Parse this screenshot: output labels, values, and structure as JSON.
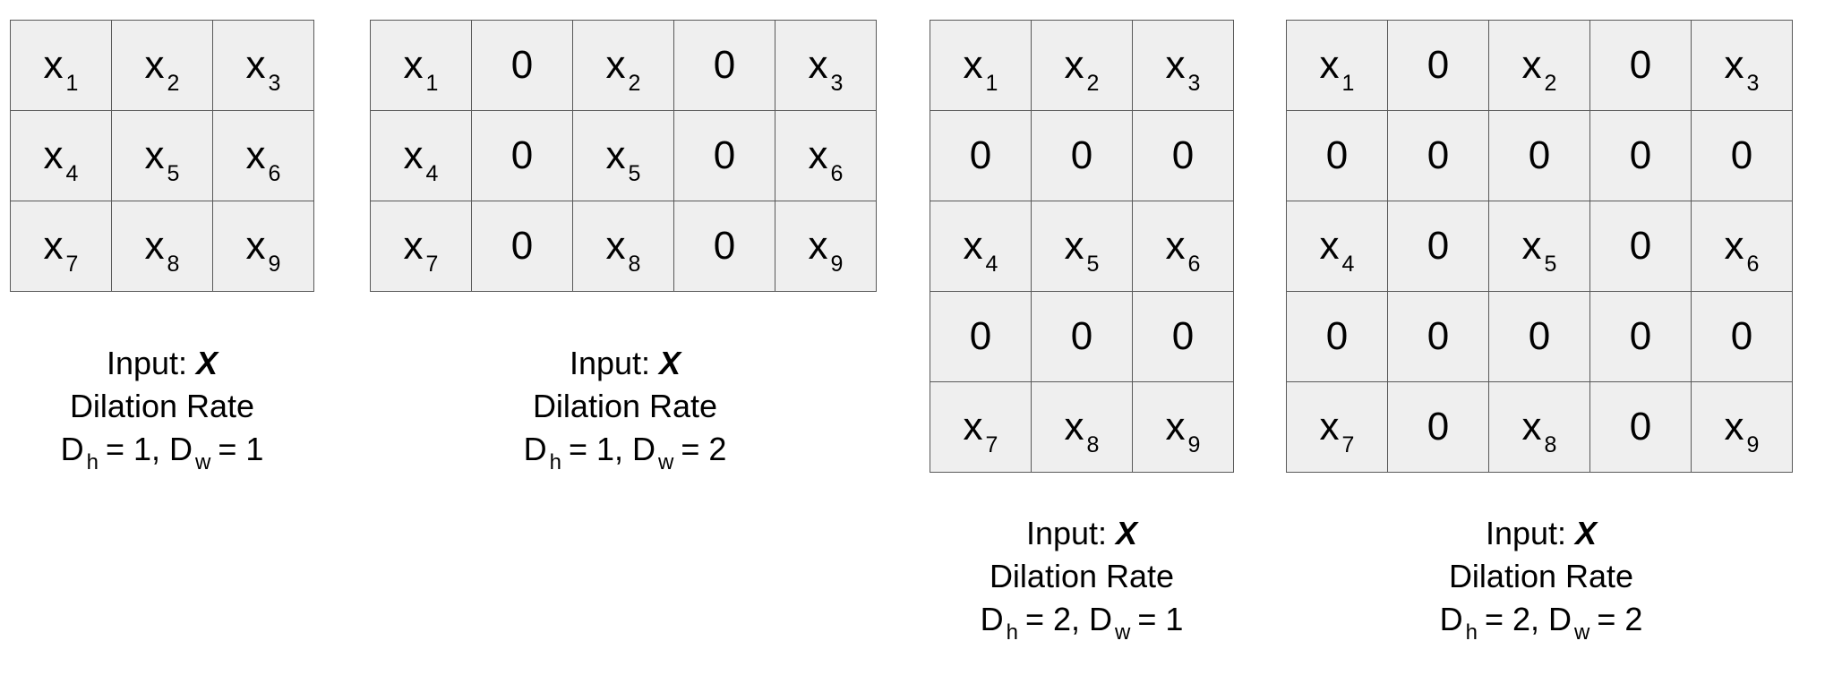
{
  "panels": [
    {
      "cells": [
        [
          "x|1",
          "x|2",
          "x|3"
        ],
        [
          "x|4",
          "x|5",
          "x|6"
        ],
        [
          "x|7",
          "x|8",
          "x|9"
        ]
      ],
      "caption": {
        "input_label": "Input: ",
        "input_var": "X",
        "rate_label": "Dilation Rate",
        "dh_base": "D",
        "dh_sub": "h",
        "dh_value": "= 1,",
        "dw_base": "D",
        "dw_sub": "w",
        "dw_value": "= 1"
      }
    },
    {
      "cells": [
        [
          "x|1",
          "0",
          "x|2",
          "0",
          "x|3"
        ],
        [
          "x|4",
          "0",
          "x|5",
          "0",
          "x|6"
        ],
        [
          "x|7",
          "0",
          "x|8",
          "0",
          "x|9"
        ]
      ],
      "caption": {
        "input_label": "Input: ",
        "input_var": "X",
        "rate_label": "Dilation Rate",
        "dh_base": "D",
        "dh_sub": "h",
        "dh_value": "= 1,",
        "dw_base": "D",
        "dw_sub": "w",
        "dw_value": "= 2"
      }
    },
    {
      "cells": [
        [
          "x|1",
          "x|2",
          "x|3"
        ],
        [
          "0",
          "0",
          "0"
        ],
        [
          "x|4",
          "x|5",
          "x|6"
        ],
        [
          "0",
          "0",
          "0"
        ],
        [
          "x|7",
          "x|8",
          "x|9"
        ]
      ],
      "caption": {
        "input_label": "Input: ",
        "input_var": "X",
        "rate_label": "Dilation Rate",
        "dh_base": "D",
        "dh_sub": "h",
        "dh_value": "= 2,",
        "dw_base": "D",
        "dw_sub": "w",
        "dw_value": "= 1"
      }
    },
    {
      "cells": [
        [
          "x|1",
          "0",
          "x|2",
          "0",
          "x|3"
        ],
        [
          "0",
          "0",
          "0",
          "0",
          "0"
        ],
        [
          "x|4",
          "0",
          "x|5",
          "0",
          "x|6"
        ],
        [
          "0",
          "0",
          "0",
          "0",
          "0"
        ],
        [
          "x|7",
          "0",
          "x|8",
          "0",
          "x|9"
        ]
      ],
      "caption": {
        "input_label": "Input: ",
        "input_var": "X",
        "rate_label": "Dilation Rate",
        "dh_base": "D",
        "dh_sub": "h",
        "dh_value": "= 2,",
        "dw_base": "D",
        "dw_sub": "w",
        "dw_value": "= 2"
      }
    }
  ]
}
